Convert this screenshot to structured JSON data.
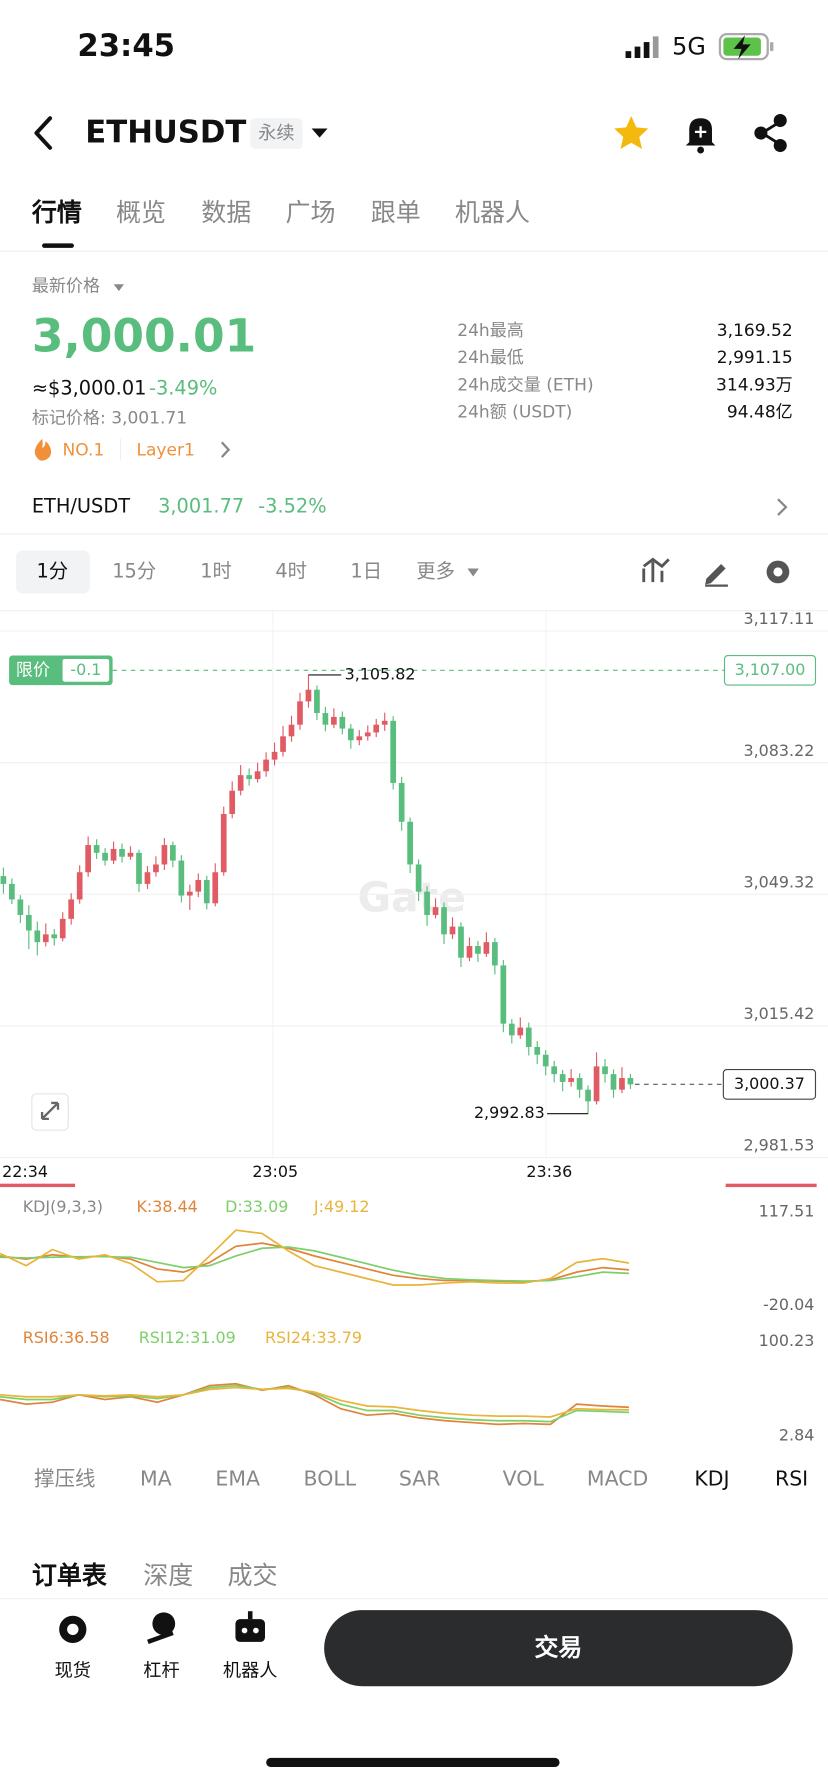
{
  "status_bar": {
    "time": "23:45",
    "network": "5G"
  },
  "header": {
    "symbol": "ETHUSDT",
    "contract_tag": "永续"
  },
  "tabs": [
    "行情",
    "概览",
    "数据",
    "广场",
    "跟单",
    "机器人"
  ],
  "price_panel": {
    "latest_label": "最新价格",
    "last_price": "3,000.01",
    "usd_price": "≈$3,000.01",
    "change": "-3.49%",
    "mark_price": "标记价格: 3,001.71",
    "rank": "NO.1",
    "sector": "Layer1",
    "stats": [
      {
        "label": "24h最高",
        "value": "3,169.52"
      },
      {
        "label": "24h最低",
        "value": "2,991.15"
      },
      {
        "label": "24h成交量 (ETH)",
        "value": "314.93万"
      },
      {
        "label": "24h额 (USDT)",
        "value": "94.48亿"
      }
    ]
  },
  "spot": {
    "pair": "ETH/USDT",
    "price": "3,001.77",
    "change": "-3.52%"
  },
  "intervals": [
    "1分",
    "15分",
    "1时",
    "4时",
    "1日",
    "更多"
  ],
  "kline": {
    "ylim": [
      2981.53,
      3117.11
    ],
    "yticks": [
      {
        "value": 3117.11,
        "label": "3,117.11"
      },
      {
        "value": 3083.22,
        "label": "3,083.22"
      },
      {
        "value": 3049.32,
        "label": "3,049.32"
      },
      {
        "value": 3015.42,
        "label": "3,015.42"
      },
      {
        "value": 2981.53,
        "label": "2,981.53"
      }
    ],
    "xlabels": [
      "22:34",
      "23:05",
      "23:36"
    ],
    "up_color": "#e15b64",
    "down_color": "#58bd7d",
    "watermark": "Gate",
    "limit_order": {
      "label": "限价",
      "offset": "-0.1",
      "price": {
        "value": 3107.0,
        "label": "3,107.00"
      }
    },
    "high": {
      "value": 3105.82,
      "label": "3,105.82"
    },
    "low": {
      "value": 2992.83,
      "label": "2,992.83"
    },
    "current": {
      "value": 3000.37,
      "label": "3,000.37"
    },
    "candles": [
      [
        3054,
        3056.2,
        3049.5,
        3052
      ],
      [
        3052,
        3053.4,
        3046.8,
        3048
      ],
      [
        3048,
        3049.1,
        3041.9,
        3044
      ],
      [
        3044,
        3046.5,
        3035.2,
        3040
      ],
      [
        3040,
        3042.3,
        3033.6,
        3037
      ],
      [
        3037,
        3041.8,
        3035.9,
        3039
      ],
      [
        3039,
        3040.4,
        3036.1,
        3038
      ],
      [
        3038,
        3044.7,
        3037.2,
        3043
      ],
      [
        3043,
        3049.6,
        3041.5,
        3048
      ],
      [
        3048,
        3056.8,
        3046.9,
        3055
      ],
      [
        3055,
        3064.2,
        3053.8,
        3062
      ],
      [
        3062,
        3063.5,
        3058.4,
        3060
      ],
      [
        3060,
        3061.2,
        3056.7,
        3058
      ],
      [
        3058,
        3062.9,
        3057.1,
        3061
      ],
      [
        3061,
        3062.4,
        3057.5,
        3059
      ],
      [
        3059,
        3061.7,
        3058.2,
        3060
      ],
      [
        3060,
        3060.8,
        3049.9,
        3052
      ],
      [
        3052,
        3056.6,
        3050.7,
        3055
      ],
      [
        3055,
        3059.1,
        3053.9,
        3057
      ],
      [
        3057,
        3063.8,
        3055.6,
        3062
      ],
      [
        3062,
        3062.9,
        3056.3,
        3058
      ],
      [
        3058,
        3059.4,
        3047.2,
        3049
      ],
      [
        3049,
        3051.8,
        3045.3,
        3050
      ],
      [
        3050,
        3054.7,
        3048.6,
        3053
      ],
      [
        3053,
        3054.1,
        3045.4,
        3047
      ],
      [
        3047,
        3057.3,
        3046.2,
        3055
      ],
      [
        3055,
        3071.9,
        3054.1,
        3070
      ],
      [
        3070,
        3078.4,
        3068.9,
        3076
      ],
      [
        3076,
        3082.6,
        3074.8,
        3080
      ],
      [
        3080,
        3081.7,
        3077.3,
        3079
      ],
      [
        3079,
        3083.2,
        3078.1,
        3081
      ],
      [
        3081,
        3085.9,
        3079.6,
        3084
      ],
      [
        3084,
        3088.4,
        3082.5,
        3086
      ],
      [
        3086,
        3092.7,
        3084.8,
        3090
      ],
      [
        3090,
        3095.3,
        3088.6,
        3093
      ],
      [
        3093,
        3101.2,
        3091.7,
        3099
      ],
      [
        3099,
        3105.82,
        3097.4,
        3102
      ],
      [
        3102,
        3103.1,
        3094.2,
        3096
      ],
      [
        3096,
        3097.6,
        3091.3,
        3093
      ],
      [
        3093,
        3097.2,
        3092.1,
        3095
      ],
      [
        3095,
        3096.4,
        3090.5,
        3092
      ],
      [
        3092,
        3093.2,
        3086.8,
        3089
      ],
      [
        3089,
        3091.6,
        3087.7,
        3090
      ],
      [
        3090,
        3092.8,
        3088.9,
        3091
      ],
      [
        3091,
        3094.5,
        3089.8,
        3093
      ],
      [
        3093,
        3096.1,
        3091.4,
        3094
      ],
      [
        3094,
        3095.2,
        3076.3,
        3078
      ],
      [
        3078,
        3079.6,
        3065.7,
        3068
      ],
      [
        3068,
        3069.1,
        3054.8,
        3057
      ],
      [
        3057,
        3058.3,
        3047.6,
        3050
      ],
      [
        3050,
        3051.4,
        3041.2,
        3044
      ],
      [
        3044,
        3048.3,
        3043.1,
        3046
      ],
      [
        3046,
        3047.2,
        3036.5,
        3039
      ],
      [
        3039,
        3043.4,
        3037.8,
        3041
      ],
      [
        3041,
        3042.1,
        3030.6,
        3033
      ],
      [
        3033,
        3038.2,
        3032.1,
        3036
      ],
      [
        3036,
        3037.3,
        3031.9,
        3034
      ],
      [
        3034,
        3039.5,
        3033.2,
        3037
      ],
      [
        3037,
        3038.1,
        3028.7,
        3031
      ],
      [
        3031,
        3032.4,
        3013.8,
        3016
      ],
      [
        3016,
        3017.2,
        3010.9,
        3013
      ],
      [
        3013,
        3017.6,
        3012.1,
        3015
      ],
      [
        3015,
        3016.3,
        3007.8,
        3010
      ],
      [
        3010,
        3011.5,
        3005.6,
        3008
      ],
      [
        3008,
        3009.2,
        3002.7,
        3005
      ],
      [
        3005,
        3006.4,
        3000.9,
        3003
      ],
      [
        3003,
        3004.1,
        2998.6,
        3001
      ],
      [
        3001,
        3004.3,
        2999.8,
        3002
      ],
      [
        3002,
        3003.2,
        2996.9,
        2999
      ],
      [
        2999,
        3000.1,
        2992.83,
        2996
      ],
      [
        2996,
        3008.6,
        2995.2,
        3005
      ],
      [
        3005,
        3006.9,
        3000.8,
        3003
      ],
      [
        3003,
        3004.2,
        2996.9,
        2999
      ],
      [
        2999,
        3004.8,
        2998.1,
        3002
      ],
      [
        3002,
        3003.1,
        2999.2,
        3000.37
      ]
    ]
  },
  "kdj": {
    "title": "KDJ(9,3,3)",
    "ylim": [
      -20.04,
      117.51
    ],
    "yticks": [
      117.51,
      -20.04
    ],
    "series": [
      {
        "legend": "K:38.44",
        "color": "#e0843a",
        "values": [
          60,
          55,
          62,
          58,
          60,
          55,
          40,
          35,
          50,
          75,
          80,
          72,
          60,
          50,
          40,
          30,
          25,
          22,
          22,
          21,
          20,
          23,
          35,
          42,
          38.44
        ]
      },
      {
        "legend": "D:33.09",
        "color": "#7dcf6a",
        "values": [
          58,
          57,
          58,
          59,
          59,
          58,
          50,
          42,
          45,
          60,
          72,
          74,
          68,
          58,
          48,
          38,
          30,
          25,
          23,
          22,
          21,
          22,
          28,
          35,
          33.09
        ]
      },
      {
        "legend": "J:49.12",
        "color": "#e8b43a",
        "values": [
          64,
          45,
          70,
          55,
          62,
          48,
          20,
          22,
          60,
          100,
          95,
          68,
          45,
          35,
          25,
          15,
          15,
          18,
          20,
          18,
          18,
          25,
          50,
          56,
          49.12
        ]
      }
    ]
  },
  "rsi": {
    "ylim": [
      2.84,
      100.23
    ],
    "yticks": [
      100.23,
      2.84
    ],
    "series": [
      {
        "legend": "RSI6:36.58",
        "color": "#e0843a",
        "values": [
          45,
          40,
          42,
          50,
          45,
          48,
          42,
          50,
          60,
          62,
          55,
          60,
          50,
          35,
          28,
          30,
          25,
          22,
          20,
          18,
          19,
          18,
          40,
          38,
          36.58
        ]
      },
      {
        "legend": "RSI12:31.09",
        "color": "#7dcf6a",
        "values": [
          48,
          45,
          45,
          50,
          48,
          49,
          46,
          50,
          58,
          60,
          56,
          58,
          52,
          40,
          33,
          33,
          28,
          25,
          23,
          22,
          22,
          21,
          33,
          32,
          31.09
        ]
      },
      {
        "legend": "RSI24:33.79",
        "color": "#e8b43a",
        "values": [
          50,
          48,
          48,
          50,
          49,
          50,
          48,
          50,
          56,
          58,
          56,
          57,
          53,
          44,
          38,
          37,
          33,
          30,
          28,
          27,
          27,
          26,
          35,
          34,
          33.79
        ]
      }
    ]
  },
  "indicator_tabs": [
    "撑压线",
    "MA",
    "EMA",
    "BOLL",
    "SAR",
    "VOL",
    "MACD",
    "KDJ",
    "RSI"
  ],
  "order_tabs": [
    "订单表",
    "深度",
    "成交"
  ],
  "bottom_bar": {
    "items": [
      "现货",
      "杠杆",
      "机器人"
    ],
    "trade_button": "交易"
  }
}
